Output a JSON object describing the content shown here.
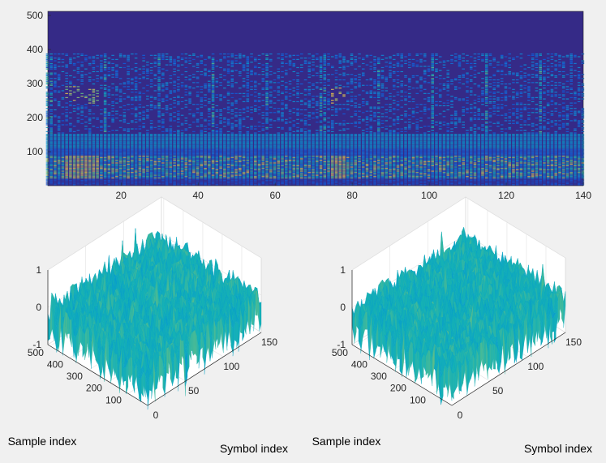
{
  "figure": {
    "background": "#f0f0f0",
    "axis_text_color": "#262626",
    "colormap": "parula"
  },
  "chart_data": [
    {
      "type": "heatmap",
      "title": "",
      "xlabel": "",
      "ylabel": "",
      "xlim": [
        1,
        140
      ],
      "ylim": [
        0,
        512
      ],
      "xticks": [
        20,
        40,
        60,
        80,
        100,
        120,
        140
      ],
      "yticks": [
        100,
        200,
        300,
        400,
        500
      ],
      "background_value": 0.05,
      "bands": [
        {
          "from": 0,
          "to": 20,
          "value": 0.1
        },
        {
          "from": 20,
          "to": 85,
          "value": 0.55,
          "note": "noisy band"
        },
        {
          "from": 85,
          "to": 108,
          "value": 0.22
        },
        {
          "from": 108,
          "to": 150,
          "value": 0.42
        },
        {
          "from": 150,
          "to": 385,
          "value": 0.2,
          "sparse": true
        }
      ],
      "bright_columns": [
        {
          "x": [
            6,
            10
          ],
          "y": [
            245,
            290
          ],
          "value": 0.85
        },
        {
          "x": [
            10,
            14
          ],
          "y": [
            240,
            290
          ],
          "value": 0.78
        },
        {
          "x": [
            75,
            78
          ],
          "y": [
            240,
            285
          ],
          "value": 0.88
        }
      ],
      "periodic_column_spacing": 14.2
    },
    {
      "type": "surface",
      "xlabel": "Symbol index",
      "ylabel": "Sample index",
      "zlim": [
        -1,
        1
      ],
      "xticks": [
        0,
        50,
        100,
        150
      ],
      "yticks": [
        100,
        200,
        300,
        400,
        500
      ],
      "zticks": [
        -1,
        0,
        1
      ],
      "x_range": [
        0,
        150
      ],
      "y_range": [
        0,
        512
      ],
      "z_level": -0.1,
      "z_amplitude": 0.35
    },
    {
      "type": "surface",
      "xlabel": "Symbol index",
      "ylabel": "Sample index",
      "zlim": [
        -1,
        1
      ],
      "xticks": [
        0,
        50,
        100,
        150
      ],
      "yticks": [
        100,
        200,
        300,
        400,
        500
      ],
      "zticks": [
        -1,
        0,
        1
      ],
      "x_range": [
        0,
        150
      ],
      "y_range": [
        0,
        512
      ],
      "z_level": -0.1,
      "z_amplitude": 0.33
    }
  ]
}
